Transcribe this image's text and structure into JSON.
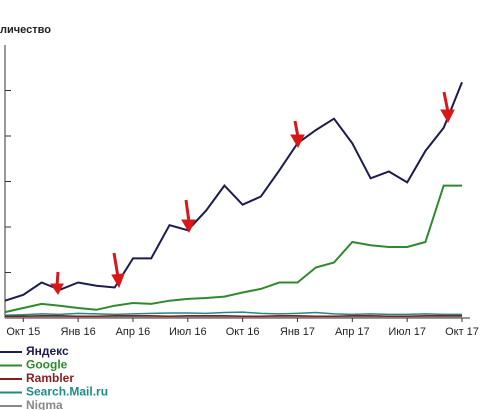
{
  "chart_data": {
    "type": "line",
    "title": "личество",
    "categories": [
      null,
      "Окт 15",
      null,
      null,
      "Янв 16",
      null,
      null,
      "Апр 16",
      null,
      null,
      "Июл 16",
      null,
      null,
      "Окт 16",
      null,
      null,
      "Янв 17",
      null,
      null,
      "Апр 17",
      null,
      null,
      "Июл 17",
      null,
      null,
      "Окт 17"
    ],
    "series": [
      {
        "name": "Яндекс",
        "color": "#1c1c4f",
        "values": [
          0.38,
          0.51,
          0.78,
          0.62,
          0.78,
          0.71,
          0.67,
          1.31,
          1.31,
          2.04,
          1.93,
          2.36,
          2.91,
          2.49,
          2.67,
          3.24,
          3.84,
          4.13,
          4.38,
          3.84,
          3.07,
          3.22,
          2.98,
          3.67,
          4.18,
          5.18
        ]
      },
      {
        "name": "Google",
        "color": "#2f8a2f",
        "values": [
          0.13,
          0.22,
          0.31,
          0.27,
          0.22,
          0.18,
          0.27,
          0.33,
          0.31,
          0.38,
          0.42,
          0.44,
          0.47,
          0.56,
          0.64,
          0.78,
          0.78,
          1.11,
          1.22,
          1.67,
          1.6,
          1.56,
          1.56,
          1.67,
          2.91,
          2.91
        ]
      },
      {
        "name": "Rambler",
        "color": "#8b1c1c",
        "values": [
          0.04,
          0.04,
          0.05,
          0.05,
          0.04,
          0.04,
          0.05,
          0.05,
          0.05,
          0.04,
          0.05,
          0.05,
          0.05,
          0.04,
          0.04,
          0.05,
          0.05,
          0.04,
          0.04,
          0.05,
          0.05,
          0.04,
          0.04,
          0.05,
          0.05,
          0.05
        ]
      },
      {
        "name": "Search.Mail.ru",
        "color": "#1f8a8a",
        "values": [
          0.06,
          0.07,
          0.09,
          0.08,
          0.1,
          0.09,
          0.08,
          0.09,
          0.1,
          0.11,
          0.11,
          0.1,
          0.12,
          0.13,
          0.1,
          0.09,
          0.1,
          0.12,
          0.09,
          0.08,
          0.09,
          0.08,
          0.08,
          0.09,
          0.08,
          0.08
        ]
      },
      {
        "name": "Nigma",
        "color": "#888888",
        "values": [
          0.02,
          0.02,
          0.02,
          0.02,
          0.02,
          0.02,
          0.02,
          0.02,
          0.02,
          0.02,
          0.02,
          0.02,
          0.02,
          0.02,
          0.02,
          0.02,
          0.02,
          0.02,
          0.02,
          0.02,
          0.02,
          0.02,
          0.02,
          0.02,
          0.02,
          0.02
        ]
      }
    ],
    "ylim": [
      0,
      6
    ],
    "yticks": [
      1,
      2,
      3,
      4,
      5
    ]
  }
}
